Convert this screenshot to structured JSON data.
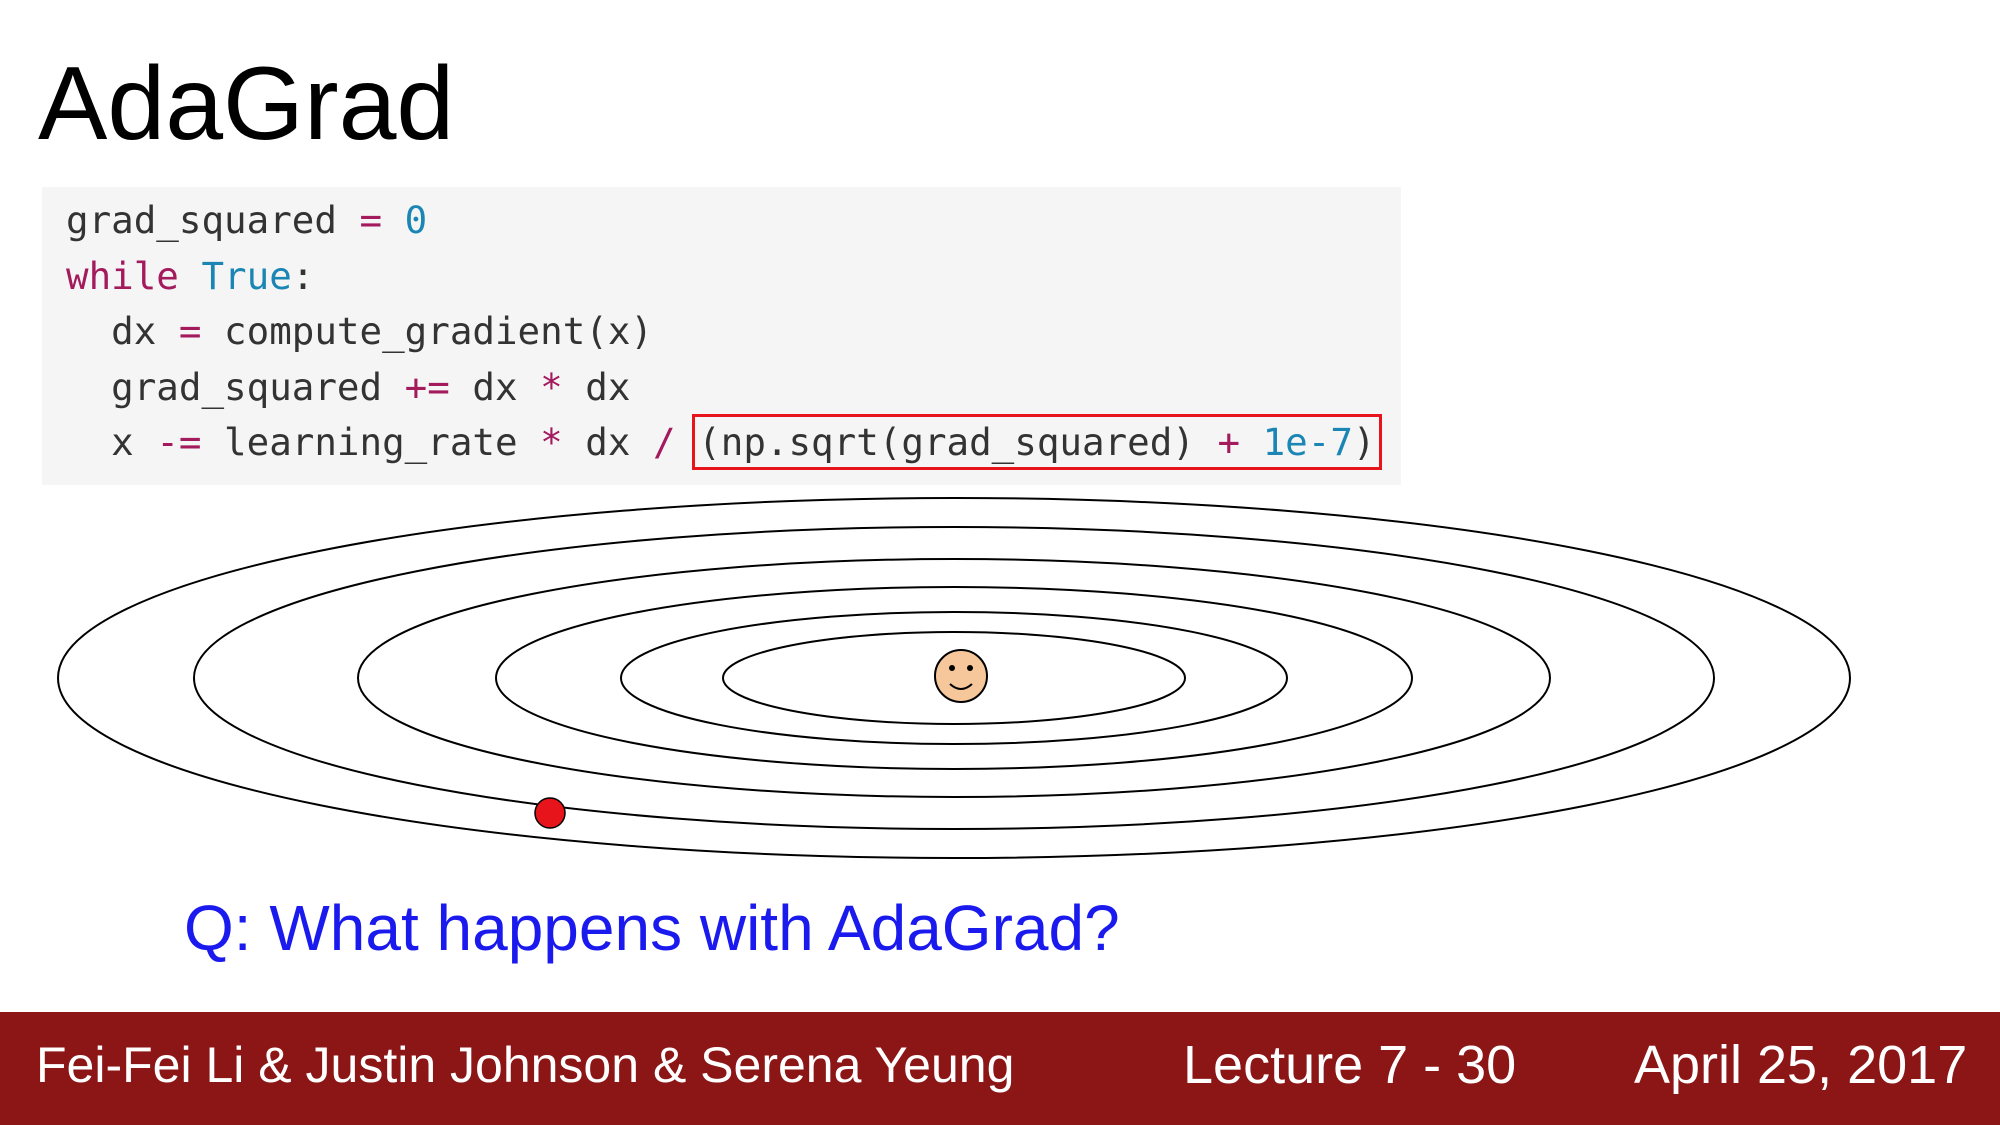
{
  "slide": {
    "title": "AdaGrad",
    "question": "Q: What happens with AdaGrad?"
  },
  "code": {
    "line1": {
      "a": "grad_squared",
      "b": " ",
      "op": "=",
      "c": " ",
      "num": "0"
    },
    "line2": {
      "kw": "while",
      "b": " ",
      "bi": "True",
      "c": ":"
    },
    "line3": {
      "a": "  dx ",
      "op": "=",
      "c": " compute_gradient(x)"
    },
    "line4": {
      "a": "  grad_squared ",
      "op": "+=",
      "c": " dx ",
      "op2": "*",
      "d": " dx"
    },
    "line5": {
      "a": "  x ",
      "op": "-=",
      "c": " learning_rate ",
      "op2": "*",
      "d": " dx ",
      "op3": "/",
      "e": " ",
      "hl_a": "(np.sqrt(grad_squared) ",
      "hl_op": "+",
      "hl_b": " ",
      "hl_num": "1e-7",
      "hl_c": ")"
    },
    "highlight_color": "#e8141b"
  },
  "diagram": {
    "contour_count": 6,
    "point_color": "#e8141b",
    "minimum_icon": "smiley-face-icon"
  },
  "footer": {
    "authors": "Fei-Fei Li & Justin Johnson & Serena Yeung",
    "lecture": "Lecture 7 - 30",
    "date": "April 25, 2017",
    "background": "#8c1515"
  }
}
